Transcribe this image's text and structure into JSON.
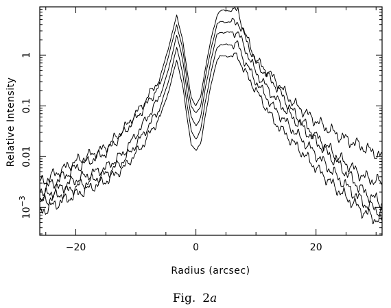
{
  "chart_data": {
    "type": "line",
    "xlabel": "Radius (arcsec)",
    "ylabel": "Relative Intensity",
    "caption": {
      "fig": "Fig.",
      "num": "2",
      "letter": "a"
    },
    "xlim": [
      -26,
      31
    ],
    "ylim_log10": [
      -3.55,
      0.95
    ],
    "yscale": "log",
    "grid": false,
    "x_ticks": [
      {
        "value": -20,
        "label": "−20"
      },
      {
        "value": 0,
        "label": "0"
      },
      {
        "value": 20,
        "label": "20"
      }
    ],
    "y_ticks": [
      {
        "value": 1,
        "label": "1"
      },
      {
        "value": 0.1,
        "label": "0.1"
      },
      {
        "value": 0.01,
        "label": "0.01"
      },
      {
        "value": 0.001,
        "label": "10",
        "exponent": "−3"
      }
    ],
    "series": [
      {
        "x": [
          -26,
          -20,
          -15,
          -12,
          -9,
          -6,
          -4.5,
          -3.2,
          -2.2,
          -1.5,
          -0.8,
          0,
          0.8,
          1.5,
          2.5,
          3.5,
          4,
          5,
          6,
          7,
          8,
          10,
          13,
          16,
          20,
          24,
          28,
          31
        ],
        "y": [
          0.003,
          0.008,
          0.015,
          0.035,
          0.1,
          0.35,
          1.5,
          6.0,
          2.0,
          0.5,
          0.15,
          0.1,
          0.15,
          0.5,
          2.0,
          6.0,
          7.5,
          7.5,
          7.5,
          7.5,
          3.0,
          0.8,
          0.35,
          0.12,
          0.05,
          0.025,
          0.015,
          0.01
        ]
      },
      {
        "x": [
          -26,
          -20,
          -15,
          -12,
          -9,
          -6,
          -4.5,
          -3.2,
          -2.2,
          -1.5,
          -0.8,
          0,
          0.8,
          1.5,
          2.5,
          3.5,
          4,
          5,
          6,
          7,
          8,
          10,
          13,
          16,
          20,
          24,
          28,
          31
        ],
        "y": [
          0.002,
          0.006,
          0.012,
          0.03,
          0.08,
          0.25,
          1.0,
          4.0,
          1.3,
          0.33,
          0.1,
          0.07,
          0.1,
          0.33,
          1.3,
          4.0,
          4.5,
          4.5,
          4.5,
          4.5,
          2.5,
          0.7,
          0.28,
          0.08,
          0.025,
          0.009,
          0.004,
          0.003
        ]
      },
      {
        "x": [
          -26,
          -20,
          -15,
          -12,
          -9,
          -6,
          -4.5,
          -3.2,
          -2.2,
          -1.5,
          -0.8,
          0,
          0.8,
          1.5,
          2.5,
          3.5,
          4,
          5,
          6,
          7,
          8,
          10,
          13,
          16,
          20,
          24,
          28,
          31
        ],
        "y": [
          0.0015,
          0.0035,
          0.006,
          0.012,
          0.04,
          0.15,
          0.55,
          2.5,
          0.8,
          0.2,
          0.06,
          0.04,
          0.06,
          0.2,
          0.8,
          2.5,
          2.8,
          2.8,
          2.8,
          2.8,
          1.5,
          0.45,
          0.15,
          0.06,
          0.02,
          0.0065,
          0.002,
          0.0012
        ]
      },
      {
        "x": [
          -26,
          -20,
          -15,
          -12,
          -9,
          -6,
          -4.5,
          -3.2,
          -2.2,
          -1.5,
          -0.8,
          0,
          0.8,
          1.5,
          2.5,
          3.5,
          4,
          5,
          6,
          7,
          8,
          10,
          13,
          16,
          20,
          24,
          28,
          31
        ],
        "y": [
          0.0012,
          0.0025,
          0.0045,
          0.0085,
          0.025,
          0.09,
          0.32,
          1.4,
          0.45,
          0.11,
          0.033,
          0.022,
          0.033,
          0.11,
          0.45,
          1.4,
          1.6,
          1.6,
          1.6,
          1.6,
          0.8,
          0.3,
          0.09,
          0.035,
          0.011,
          0.0035,
          0.0012,
          0.0008
        ]
      },
      {
        "x": [
          -26,
          -20,
          -15,
          -12,
          -9,
          -6,
          -4.5,
          -3.2,
          -2.2,
          -1.5,
          -0.8,
          0,
          0.8,
          1.5,
          2.5,
          3.5,
          4,
          5,
          6,
          7,
          8,
          10,
          13,
          16,
          20,
          24,
          28,
          31
        ],
        "y": [
          0.0008,
          0.0018,
          0.0033,
          0.006,
          0.016,
          0.06,
          0.2,
          0.8,
          0.25,
          0.06,
          0.018,
          0.013,
          0.018,
          0.06,
          0.25,
          0.8,
          0.95,
          0.95,
          0.95,
          0.95,
          0.5,
          0.2,
          0.05,
          0.02,
          0.006,
          0.002,
          0.0008,
          0.0005
        ]
      }
    ]
  }
}
